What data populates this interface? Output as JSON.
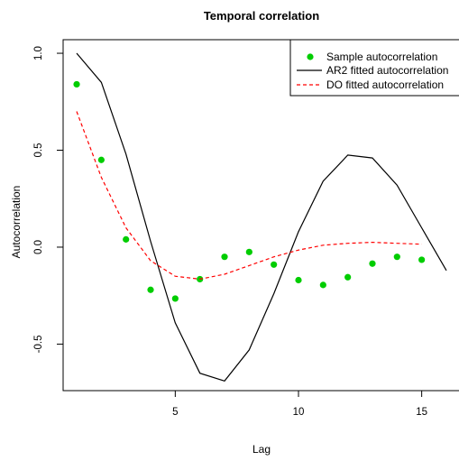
{
  "chart_data": {
    "type": "line",
    "title": "Temporal correlation",
    "xlabel": "Lag",
    "ylabel": "Autocorrelation",
    "xlim": [
      0.45,
      16.55
    ],
    "ylim": [
      -0.74,
      1.07
    ],
    "x_ticks": [
      5,
      10,
      15
    ],
    "y_ticks": [
      -0.5,
      0.0,
      0.5,
      1.0
    ],
    "x_tick_labels": [
      "5",
      "10",
      "15"
    ],
    "y_tick_labels": [
      "-0.5",
      "0.0",
      "0.5",
      "1.0"
    ],
    "grid": false,
    "legend_position": "top-right",
    "series": [
      {
        "name": "Sample autocorrelation",
        "style": "points",
        "color": "#00cd00",
        "x": [
          1,
          2,
          3,
          4,
          5,
          6,
          7,
          8,
          9,
          10,
          11,
          12,
          13,
          14,
          15
        ],
        "values": [
          0.84,
          0.45,
          0.04,
          -0.22,
          -0.265,
          -0.165,
          -0.05,
          -0.025,
          -0.09,
          -0.17,
          -0.195,
          -0.155,
          -0.085,
          -0.05,
          -0.065
        ]
      },
      {
        "name": "AR2 fitted autocorrelation",
        "style": "solid",
        "color": "#000000",
        "x": [
          1,
          2,
          3,
          4,
          5,
          6,
          7,
          8,
          9,
          10,
          11,
          12,
          13,
          14,
          15,
          16
        ],
        "values": [
          1.0,
          0.85,
          0.48,
          0.03,
          -0.39,
          -0.65,
          -0.69,
          -0.53,
          -0.24,
          0.08,
          0.34,
          0.475,
          0.46,
          0.32,
          0.1,
          -0.12
        ]
      },
      {
        "name": "DO fitted autocorrelation",
        "style": "dashed",
        "color": "#ff0000",
        "x": [
          1,
          2,
          3,
          4,
          5,
          6,
          7,
          8,
          9,
          10,
          11,
          12,
          13,
          14,
          15
        ],
        "values": [
          0.7,
          0.36,
          0.1,
          -0.07,
          -0.15,
          -0.165,
          -0.14,
          -0.095,
          -0.05,
          -0.015,
          0.01,
          0.02,
          0.025,
          0.02,
          0.015
        ]
      }
    ]
  }
}
